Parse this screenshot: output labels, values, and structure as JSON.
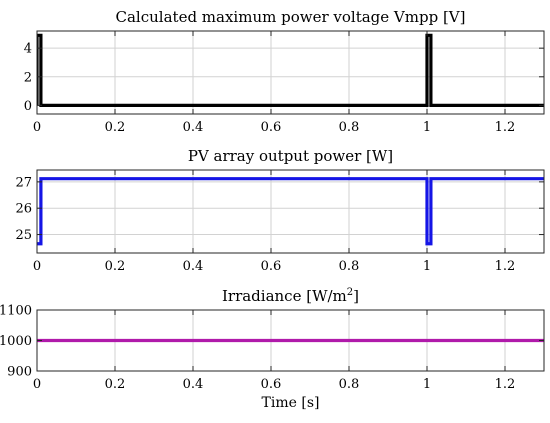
{
  "chart_data": [
    {
      "type": "line",
      "title": "Calculated maximum power voltage Vmpp [V]",
      "xlabel": "",
      "ylabel": "",
      "xlim": [
        0,
        1.3
      ],
      "ylim": [
        -0.6,
        5.2
      ],
      "xticks": [
        0,
        0.2,
        0.4,
        0.6,
        0.8,
        1,
        1.2
      ],
      "xtick_labels": [
        "0",
        "0.2",
        "0.4",
        "0.6",
        "0.8",
        "1",
        "1.2"
      ],
      "yticks": [
        0,
        2,
        4
      ],
      "ytick_labels": [
        "0",
        "2",
        "4"
      ],
      "grid": true,
      "series": [
        {
          "color": "#000000",
          "x": [
            0,
            0,
            0.01,
            0.01,
            1.0,
            1.0,
            1.01,
            1.01,
            1.3
          ],
          "y": [
            0,
            4.9,
            4.9,
            0,
            0,
            4.9,
            4.9,
            0,
            0
          ]
        }
      ]
    },
    {
      "type": "line",
      "title": "PV array output power [W]",
      "xlabel": "",
      "ylabel": "",
      "xlim": [
        0,
        1.3
      ],
      "ylim": [
        24.3,
        27.45
      ],
      "xticks": [
        0,
        0.2,
        0.4,
        0.6,
        0.8,
        1,
        1.2
      ],
      "xtick_labels": [
        "0",
        "0.2",
        "0.4",
        "0.6",
        "0.8",
        "1",
        "1.2"
      ],
      "yticks": [
        25,
        26,
        27
      ],
      "ytick_labels": [
        "25",
        "26",
        "27"
      ],
      "grid": true,
      "series": [
        {
          "color": "#1515e6",
          "x": [
            0,
            0.01,
            0.01,
            1.0,
            1.0,
            1.01,
            1.01,
            1.3
          ],
          "y": [
            24.65,
            24.65,
            27.12,
            27.12,
            24.65,
            24.65,
            27.12,
            27.12
          ]
        }
      ]
    },
    {
      "type": "line",
      "title": "Irradiance [W/m",
      "title_sup": "2",
      "title_end": "]",
      "xlabel": "Time [s]",
      "ylabel": "",
      "xlim": [
        0,
        1.3
      ],
      "ylim": [
        900,
        1100
      ],
      "xticks": [
        0,
        0.2,
        0.4,
        0.6,
        0.8,
        1,
        1.2
      ],
      "xtick_labels": [
        "0",
        "0.2",
        "0.4",
        "0.6",
        "0.8",
        "1",
        "1.2"
      ],
      "yticks": [
        900,
        1000,
        1100
      ],
      "ytick_labels": [
        "900",
        "1000",
        "1100"
      ],
      "grid": true,
      "series": [
        {
          "color": "#b01aaa",
          "x": [
            0,
            1.3
          ],
          "y": [
            1000,
            1000
          ]
        }
      ]
    }
  ]
}
